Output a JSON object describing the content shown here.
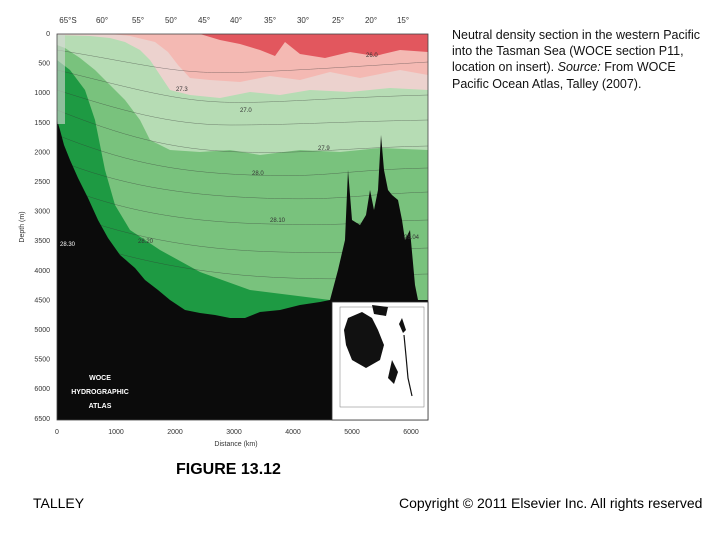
{
  "figure": {
    "top_labels": [
      "65°S",
      "60°",
      "55°",
      "50°",
      "45°",
      "40°",
      "35°",
      "30°",
      "25°",
      "20°",
      "15°"
    ],
    "y_axis_label": "Depth (m)",
    "y_ticks": [
      "0",
      "500",
      "1000",
      "1500",
      "2000",
      "2500",
      "3000",
      "3500",
      "4000",
      "4500",
      "5000",
      "5500",
      "6000",
      "6500"
    ],
    "x_axis_label": "Distance (km)",
    "x_ticks": [
      "0",
      "1000",
      "2000",
      "3000",
      "4000",
      "5000",
      "6000"
    ],
    "contour_labels": [
      "26.0",
      "27.3",
      "27.0",
      "27.9",
      "28.0",
      "28.10",
      "28.20",
      "28.30",
      "28.04"
    ],
    "watermark": [
      "WOCE",
      "HYDROGRAPHIC",
      "ATLAS"
    ],
    "colors": {
      "red_dark": "#e2575e",
      "red_light": "#f4b9b3",
      "green_light": "#b6dcb4",
      "green_mid": "#79c27d",
      "green_dark": "#1e9a43",
      "bottom": "#0b0b0b"
    }
  },
  "caption": {
    "text": "Neutral density section in the western Pacific into the Tasman Sea (WOCE section P11, location on insert).",
    "source_label": "Source:",
    "source_text": "From WOCE Pacific Ocean Atlas, Talley (2007)."
  },
  "figure_label": "FIGURE 13.12",
  "footer": {
    "author": "TALLEY",
    "copyright": "Copyright © 2011 Elsevier Inc. All rights reserved"
  }
}
